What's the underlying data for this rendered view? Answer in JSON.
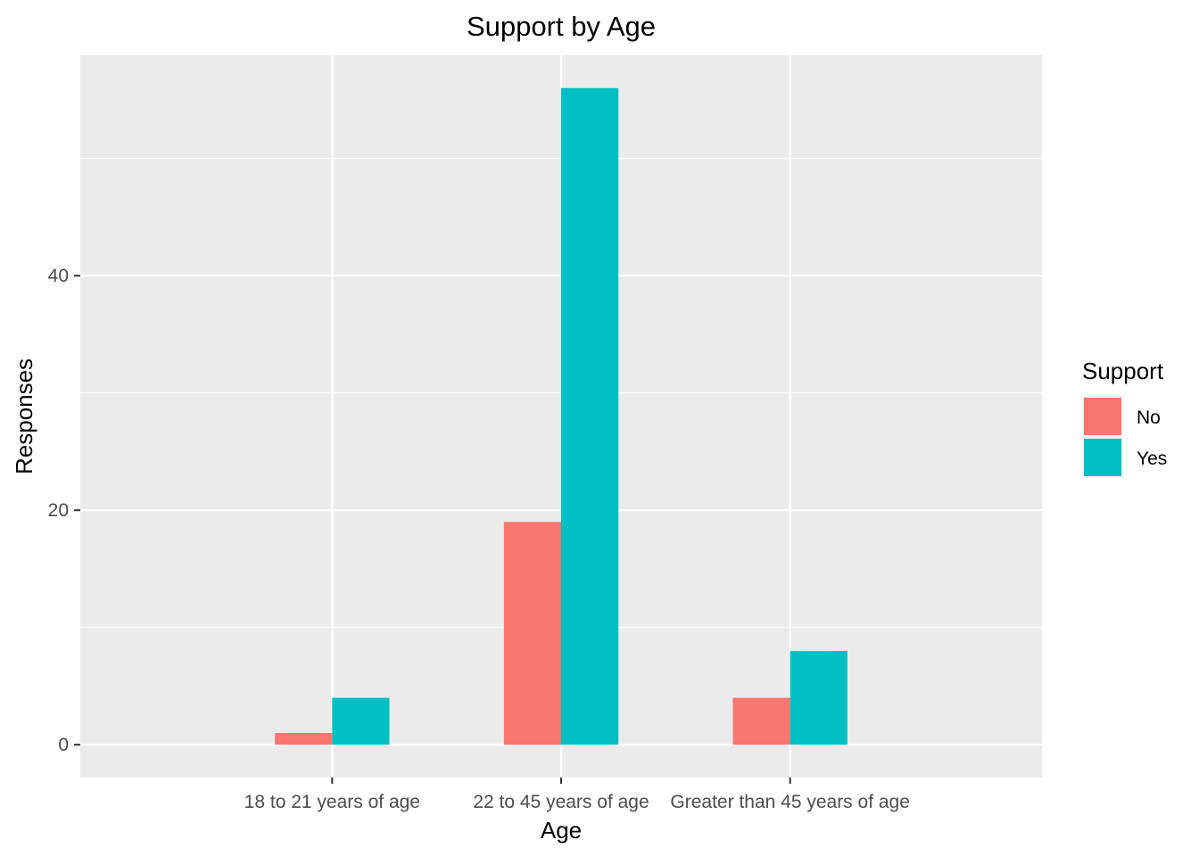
{
  "chart_data": {
    "type": "bar",
    "title": "Support by Age",
    "xlabel": "Age",
    "ylabel": "Responses",
    "categories": [
      "18 to 21 years of age",
      "22 to 45 years of age",
      "Greater than 45 years of age"
    ],
    "series": [
      {
        "name": "No",
        "values": [
          1,
          19,
          4
        ],
        "color": "#F8766D"
      },
      {
        "name": "Yes",
        "values": [
          4,
          56,
          8
        ],
        "color": "#00BFC4"
      }
    ],
    "ylim": [
      -2.8,
      58.8
    ],
    "yticks": [
      0,
      20,
      40
    ],
    "y_tick_labels": [
      "0",
      "20",
      "40"
    ],
    "grid": true,
    "legend": {
      "title": "Support",
      "position": "right"
    },
    "panel_background": "#EBEBEB",
    "grid_color": "#FFFFFF"
  }
}
